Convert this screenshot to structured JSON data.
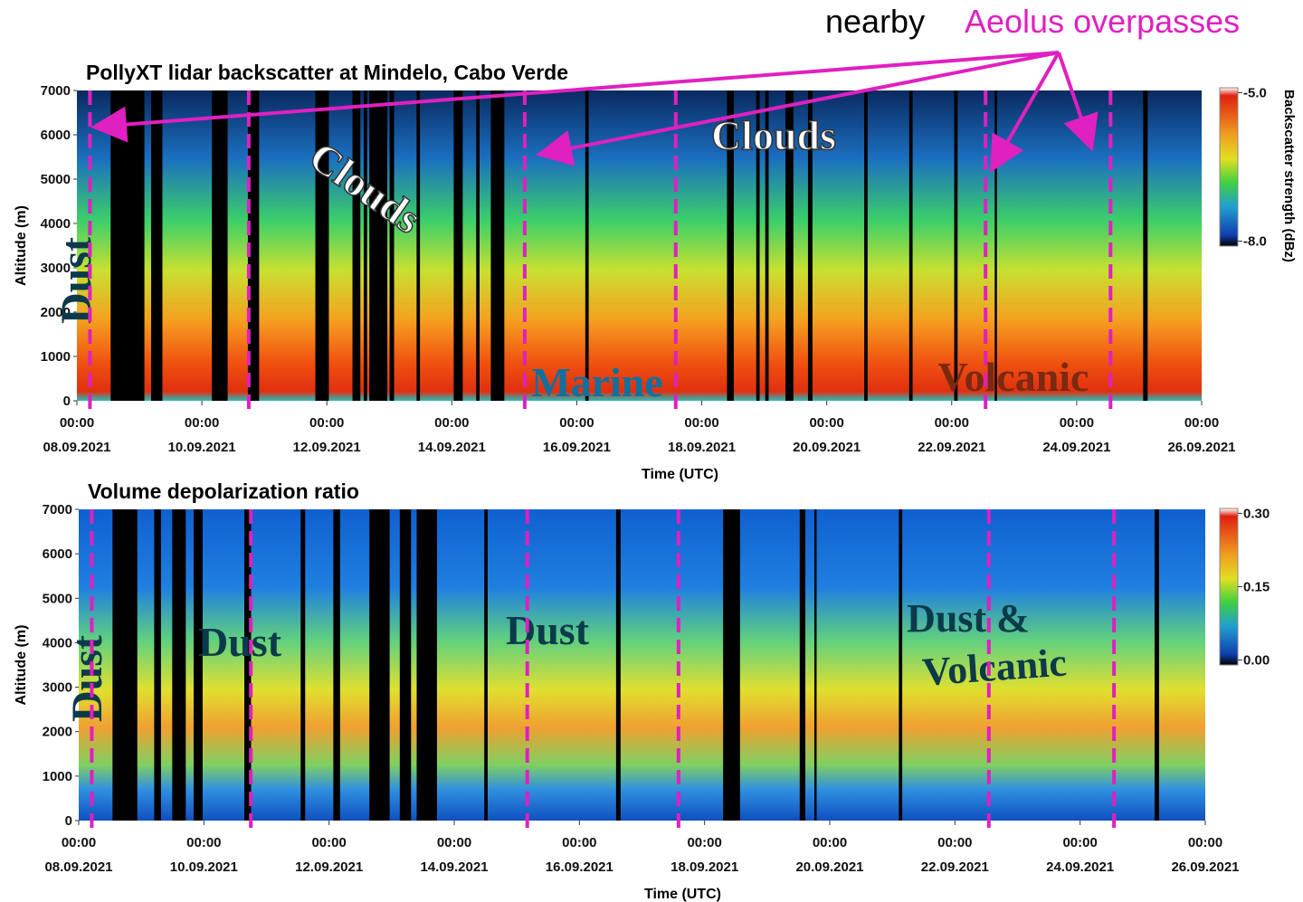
{
  "header": {
    "text": "nearby",
    "highlight": "Aeolus overpasses"
  },
  "chart_data": [
    {
      "type": "heatmap",
      "title": "PollyXT lidar backscatter at Mindelo, Cabo Verde",
      "xlabel": "Time (UTC)",
      "ylabel": "Altitude (m)",
      "xlim": [
        "2021-09-08T00:00",
        "2021-09-26T00:00"
      ],
      "xticks": [
        {
          "value": "2021-09-08T00:00",
          "time": "00:00",
          "label": "08.09.2021"
        },
        {
          "value": "2021-09-10T00:00",
          "time": "00:00",
          "label": "10.09.2021"
        },
        {
          "value": "2021-09-12T00:00",
          "time": "00:00",
          "label": "12.09.2021"
        },
        {
          "value": "2021-09-14T00:00",
          "time": "00:00",
          "label": "14.09.2021"
        },
        {
          "value": "2021-09-16T00:00",
          "time": "00:00",
          "label": "16.09.2021"
        },
        {
          "value": "2021-09-18T00:00",
          "time": "00:00",
          "label": "18.09.2021"
        },
        {
          "value": "2021-09-20T00:00",
          "time": "00:00",
          "label": "20.09.2021"
        },
        {
          "value": "2021-09-22T00:00",
          "time": "00:00",
          "label": "22.09.2021"
        },
        {
          "value": "2021-09-24T00:00",
          "time": "00:00",
          "label": "24.09.2021"
        },
        {
          "value": "2021-09-26T00:00",
          "time": "00:00",
          "label": "26.09.2021"
        }
      ],
      "ylim": [
        0,
        7000
      ],
      "yticks": [
        0,
        1000,
        2000,
        3000,
        4000,
        5000,
        6000,
        7000
      ],
      "colorbar": {
        "label": "Backscatter strength (dBz)",
        "lim": [
          -8.1,
          -4.9
        ],
        "ticks": [
          {
            "value": -5,
            "label": "-5.0"
          },
          {
            "value": -8,
            "label": "-8.0"
          }
        ]
      },
      "overpasses": {
        "color": "#e020c0",
        "x": [
          "2021-09-08T05:00",
          "2021-09-10T18:00",
          "2021-09-15T04:00",
          "2021-09-17T14:00",
          "2021-09-22T13:00",
          "2021-09-24T13:00"
        ]
      },
      "annotations": [
        "Dust",
        "Clouds",
        "Clouds",
        "Marine",
        "Volcanic"
      ]
    },
    {
      "type": "heatmap",
      "title": "Volume depolarization ratio",
      "xlabel": "Time (UTC)",
      "ylabel": "Altitude (m)",
      "xlim": [
        "2021-09-08T00:00",
        "2021-09-26T00:00"
      ],
      "xticks": [
        {
          "value": "2021-09-08T00:00",
          "time": "00:00",
          "label": "08.09.2021"
        },
        {
          "value": "2021-09-10T00:00",
          "time": "00:00",
          "label": "10.09.2021"
        },
        {
          "value": "2021-09-12T00:00",
          "time": "00:00",
          "label": "12.09.2021"
        },
        {
          "value": "2021-09-14T00:00",
          "time": "00:00",
          "label": "14.09.2021"
        },
        {
          "value": "2021-09-16T00:00",
          "time": "00:00",
          "label": "16.09.2021"
        },
        {
          "value": "2021-09-18T00:00",
          "time": "00:00",
          "label": "18.09.2021"
        },
        {
          "value": "2021-09-20T00:00",
          "time": "00:00",
          "label": "20.09.2021"
        },
        {
          "value": "2021-09-22T00:00",
          "time": "00:00",
          "label": "22.09.2021"
        },
        {
          "value": "2021-09-24T00:00",
          "time": "00:00",
          "label": "24.09.2021"
        },
        {
          "value": "2021-09-26T00:00",
          "time": "00:00",
          "label": "26.09.2021"
        }
      ],
      "ylim": [
        0,
        7000
      ],
      "yticks": [
        0,
        1000,
        2000,
        3000,
        4000,
        5000,
        6000,
        7000
      ],
      "colorbar": {
        "lim": [
          -0.01,
          0.31
        ],
        "ticks": [
          {
            "value": 0.3,
            "label": "0.30"
          },
          {
            "value": 0.15,
            "label": "0.15"
          },
          {
            "value": 0,
            "label": "0.00"
          }
        ]
      },
      "overpasses": {
        "color": "#e020c0",
        "x": [
          "2021-09-08T05:00",
          "2021-09-10T18:00",
          "2021-09-15T04:00",
          "2021-09-17T14:00",
          "2021-09-22T13:00",
          "2021-09-24T13:00"
        ]
      },
      "annotations": [
        "Dust",
        "Dust",
        "Dust",
        "Dust &",
        "Volcanic"
      ]
    }
  ]
}
